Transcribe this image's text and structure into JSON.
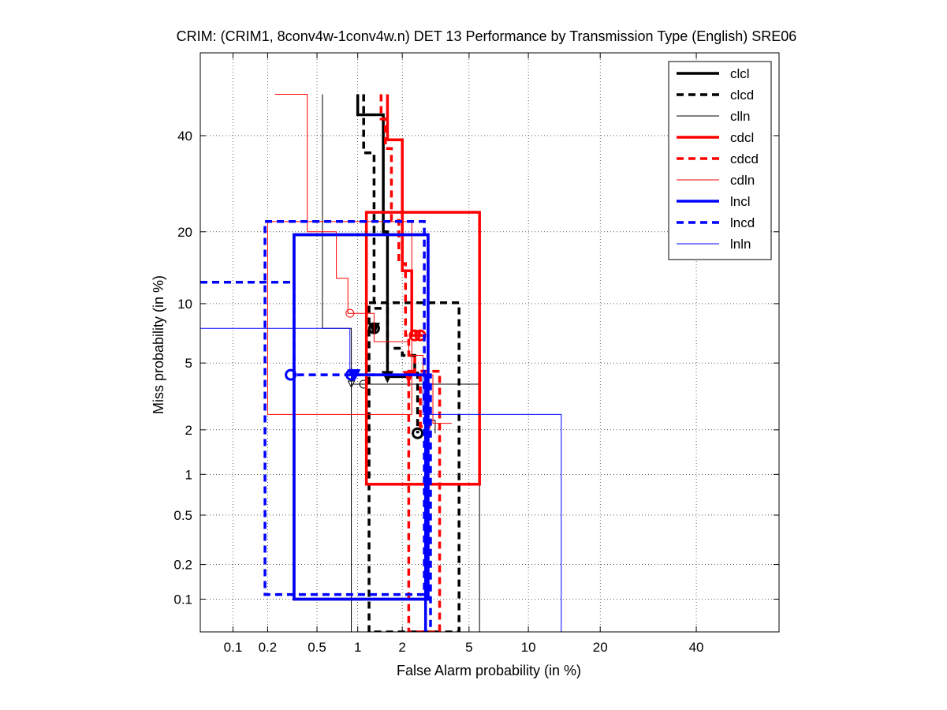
{
  "chart_data": {
    "type": "line",
    "title": "CRIM: (CRIM1, 8conv4w-1conv4w.n) DET 13 Performance by Transmission Type (English) SRE06",
    "xlabel": "False Alarm probability (in %)",
    "ylabel": "Miss probability (in %)",
    "xlim": [
      0.05,
      60
    ],
    "ylim": [
      0.05,
      60
    ],
    "xticks": [
      0.1,
      0.2,
      0.5,
      1,
      2,
      5,
      10,
      20,
      40
    ],
    "xtick_labels": [
      "0.1",
      "0.2",
      "0.5",
      "1",
      "2",
      "5",
      "10",
      "20",
      "40"
    ],
    "yticks": [
      0.1,
      0.2,
      0.5,
      1,
      2,
      5,
      10,
      20,
      40
    ],
    "ytick_labels": [
      "0.1",
      "0.2",
      "0.5",
      "1",
      "2",
      "5",
      "10",
      "20",
      "40"
    ],
    "grid": true,
    "legend_position": "top-right",
    "series": [
      {
        "name": "clcl",
        "color": "#000000",
        "style": "solid",
        "weight": "thick",
        "curve": [
          [
            1.0,
            50
          ],
          [
            1.0,
            45
          ],
          [
            1.5,
            45
          ],
          [
            1.5,
            20
          ],
          [
            1.6,
            20
          ],
          [
            1.6,
            4.2
          ],
          [
            2.2,
            4.2
          ]
        ],
        "act": [
          1.3,
          7.6
        ],
        "min": [
          1.6,
          4.2
        ],
        "box": [
          0.33,
          0.1,
          2.9,
          19.5
        ]
      },
      {
        "name": "clcd",
        "color": "#000000",
        "style": "dashed",
        "weight": "thick",
        "curve": [
          [
            1.1,
            50
          ],
          [
            1.1,
            36
          ],
          [
            1.3,
            36
          ],
          [
            1.3,
            9.5
          ],
          [
            1.6,
            9.5
          ],
          [
            1.6,
            6
          ],
          [
            2.0,
            6
          ],
          [
            2.0,
            5.5
          ],
          [
            2.4,
            5.5
          ],
          [
            2.4,
            4.6
          ],
          [
            2.5,
            4.6
          ],
          [
            2.5,
            1.9
          ]
        ],
        "act": [
          2.5,
          1.9
        ],
        "min": [
          1.3,
          7.6
        ],
        "box": [
          1.2,
          0.05,
          4.4,
          10.1
        ]
      },
      {
        "name": "clln",
        "color": "#000000",
        "style": "solid",
        "weight": "thin",
        "curve": [
          [
            0.55,
            50
          ],
          [
            0.55,
            7.6
          ],
          [
            0.9,
            7.6
          ],
          [
            0.9,
            3.8
          ],
          [
            2.8,
            3.8
          ],
          [
            2.8,
            2.3
          ],
          [
            3.2,
            2.3
          ],
          [
            3.2,
            1.9
          ]
        ],
        "act": [
          1.1,
          3.8
        ],
        "min": [
          0.9,
          3.8
        ],
        "box": [
          0.9,
          0.05,
          5.7,
          3.8
        ]
      },
      {
        "name": "cdcl",
        "color": "#ff0000",
        "style": "solid",
        "weight": "thick",
        "curve": [
          [
            1.6,
            50
          ],
          [
            1.6,
            39
          ],
          [
            2.0,
            39
          ],
          [
            2.0,
            14
          ],
          [
            2.3,
            14
          ],
          [
            2.3,
            7
          ],
          [
            2.7,
            7
          ]
        ],
        "act": [
          2.6,
          7
        ],
        "min": [
          2.2,
          4.2
        ],
        "box": [
          1.15,
          0.85,
          5.7,
          23.5
        ]
      },
      {
        "name": "cdcd",
        "color": "#ff0000",
        "style": "dashed",
        "weight": "thick",
        "curve": [
          [
            1.45,
            50
          ],
          [
            1.45,
            44
          ],
          [
            1.55,
            44
          ],
          [
            1.55,
            37
          ],
          [
            1.7,
            37
          ],
          [
            1.7,
            22
          ],
          [
            1.9,
            22
          ],
          [
            1.9,
            15
          ],
          [
            2.1,
            15
          ],
          [
            2.1,
            7
          ],
          [
            2.2,
            7
          ],
          [
            2.2,
            5.5
          ],
          [
            2.4,
            5.5
          ],
          [
            2.4,
            4.2
          ],
          [
            2.6,
            4.2
          ],
          [
            2.6,
            2.1
          ],
          [
            3.0,
            2.1
          ]
        ],
        "act": [
          2.4,
          7
        ],
        "min": [
          2.2,
          4.2
        ],
        "box": [
          2.2,
          0.05,
          3.4,
          4.5
        ]
      },
      {
        "name": "cdln",
        "color": "#ff0000",
        "style": "solid",
        "weight": "thin",
        "curve": [
          [
            0.23,
            50
          ],
          [
            0.23,
            50
          ],
          [
            0.42,
            50
          ],
          [
            0.42,
            20
          ],
          [
            0.7,
            20
          ],
          [
            0.7,
            13
          ],
          [
            0.85,
            13
          ],
          [
            0.85,
            9
          ],
          [
            1.3,
            9
          ],
          [
            1.3,
            6.5
          ],
          [
            2.2,
            6.5
          ],
          [
            2.2,
            5.5
          ],
          [
            2.7,
            5.5
          ],
          [
            2.7,
            4.3
          ],
          [
            3.1,
            4.3
          ],
          [
            3.1,
            2.2
          ],
          [
            4.0,
            2.2
          ]
        ],
        "act": [
          0.88,
          9
        ],
        "min": [
          2.5,
          7
        ],
        "box": [
          0.2,
          2.5,
          2.3,
          21.8
        ]
      },
      {
        "name": "lncl",
        "color": "#0000ff",
        "style": "solid",
        "weight": "thick",
        "curve": [
          [
            0.9,
            4.3
          ],
          [
            2.8,
            4.3
          ],
          [
            2.8,
            0.05
          ]
        ],
        "act": [
          0.9,
          4.3
        ],
        "min": [
          0.95,
          4.3
        ],
        "box": [
          0.33,
          0.1,
          2.9,
          19.5
        ]
      },
      {
        "name": "lncd",
        "color": "#0000ff",
        "style": "dashed",
        "weight": "thick",
        "curve": [
          [
            0.05,
            12.5
          ],
          [
            0.33,
            12.5
          ],
          [
            0.33,
            4.3
          ],
          [
            3.0,
            4.3
          ],
          [
            3.0,
            0.05
          ]
        ],
        "act": [
          0.31,
          4.3
        ],
        "min": [
          0.93,
          4.3
        ],
        "box": [
          0.19,
          0.11,
          2.75,
          21.8
        ]
      },
      {
        "name": "lnln",
        "color": "#0000ff",
        "style": "solid",
        "weight": "thin",
        "curve": [
          [
            0.05,
            7.6
          ],
          [
            0.88,
            7.6
          ],
          [
            0.88,
            4.3
          ],
          [
            2.7,
            4.3
          ],
          [
            2.7,
            2.5
          ],
          [
            14,
            2.5
          ],
          [
            14,
            0.05
          ]
        ],
        "act": [
          0.88,
          4.3
        ],
        "min": [
          0.92,
          4.3
        ],
        "box": null
      }
    ]
  }
}
